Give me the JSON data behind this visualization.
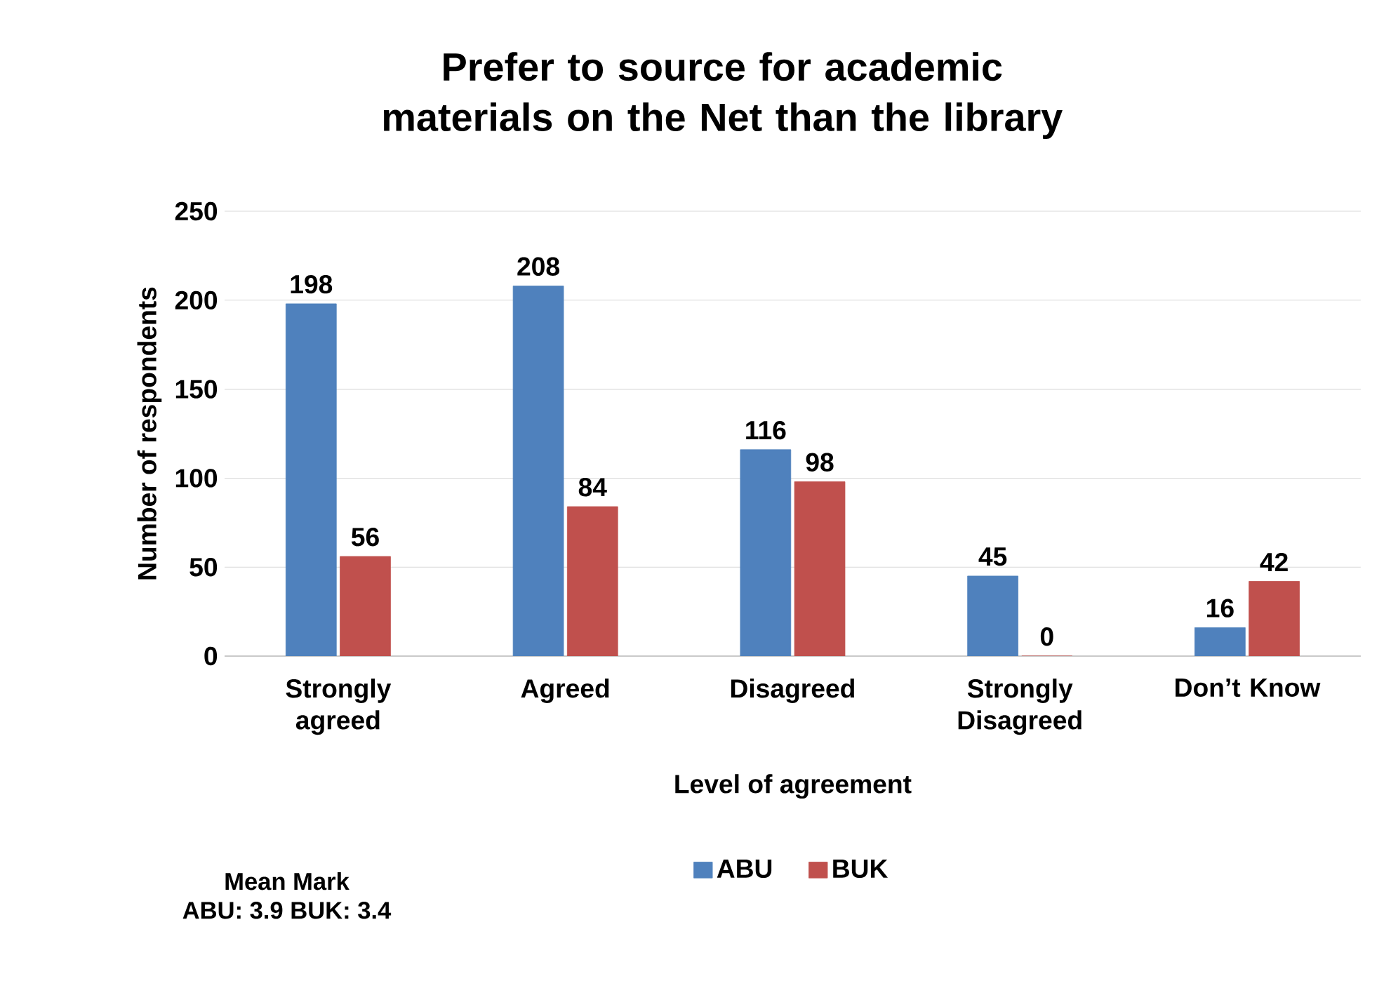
{
  "chart_data": {
    "type": "bar",
    "title": "Prefer to source for academic materials on the Net than the library",
    "xlabel": "Level of agreement",
    "ylabel": "Number of respondents",
    "categories": [
      "Strongly agreed",
      "Agreed",
      "Disagreed",
      "Strongly Disagreed",
      "Don’t Know"
    ],
    "series": [
      {
        "name": "ABU",
        "color": "#4f81bd",
        "values": [
          198,
          208,
          116,
          45,
          16
        ]
      },
      {
        "name": "BUK",
        "color": "#c0504d",
        "values": [
          56,
          84,
          98,
          0,
          42
        ]
      }
    ],
    "ylim": [
      0,
      250
    ],
    "yticks": [
      0,
      50,
      100,
      150,
      200,
      250
    ],
    "grid": "y",
    "legend": "bottom",
    "data_labels": true,
    "annotations": [
      "Mean Mark",
      "ABU: 3.9 BUK: 3.4"
    ]
  }
}
